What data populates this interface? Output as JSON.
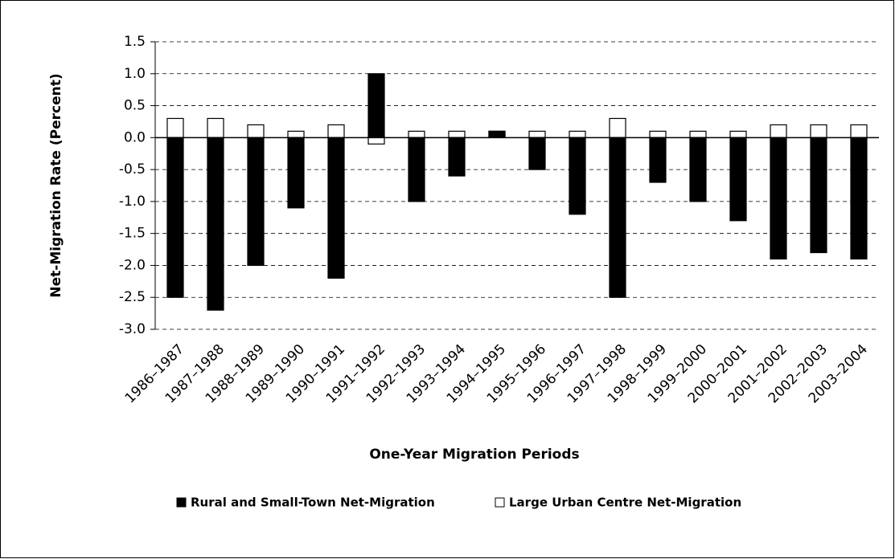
{
  "chart_data": {
    "type": "bar",
    "x_label": "One-Year Migration Periods",
    "y_label": "Net-Migration Rate (Percent)",
    "categories": [
      "1986–1987",
      "1987–1988",
      "1988–1989",
      "1989–1990",
      "1990–1991",
      "1991–1992",
      "1992–1993",
      "1993–1994",
      "1994–1995",
      "1995–1996",
      "1996–1997",
      "1997–1998",
      "1998–1999",
      "1999–2000",
      "2000–2001",
      "2001–2002",
      "2002–2003",
      "2003–2004"
    ],
    "series": [
      {
        "name": "Rural and Small-Town Net-Migration",
        "color": "#000000",
        "values": [
          -2.5,
          -2.7,
          -2.0,
          -1.1,
          -2.2,
          1.0,
          -1.0,
          -0.6,
          0.1,
          -0.5,
          -1.2,
          -2.5,
          -0.7,
          -1.0,
          -1.3,
          -1.9,
          -1.8,
          -1.9
        ]
      },
      {
        "name": "Large Urban Centre Net-Migration",
        "color": "#ffffff",
        "values": [
          0.3,
          0.3,
          0.2,
          0.1,
          0.2,
          -0.1,
          0.1,
          0.1,
          0.1,
          0.1,
          0.1,
          0.3,
          0.1,
          0.1,
          0.1,
          0.2,
          0.2,
          0.2
        ]
      }
    ],
    "ylim": [
      -3.0,
      1.5
    ],
    "yticks": [
      1.5,
      {
        "value": 1.0,
        "label": "1.0"
      },
      0.5,
      {
        "value": 0.0,
        "label": "0.0"
      },
      -0.5,
      {
        "value": -1.0,
        "label": "-1.0"
      },
      -1.5,
      {
        "value": -2.0,
        "label": "-2.0"
      },
      -2.5,
      {
        "value": -3.0,
        "label": "-3.0"
      }
    ],
    "grid": true,
    "legend": "bottom"
  }
}
